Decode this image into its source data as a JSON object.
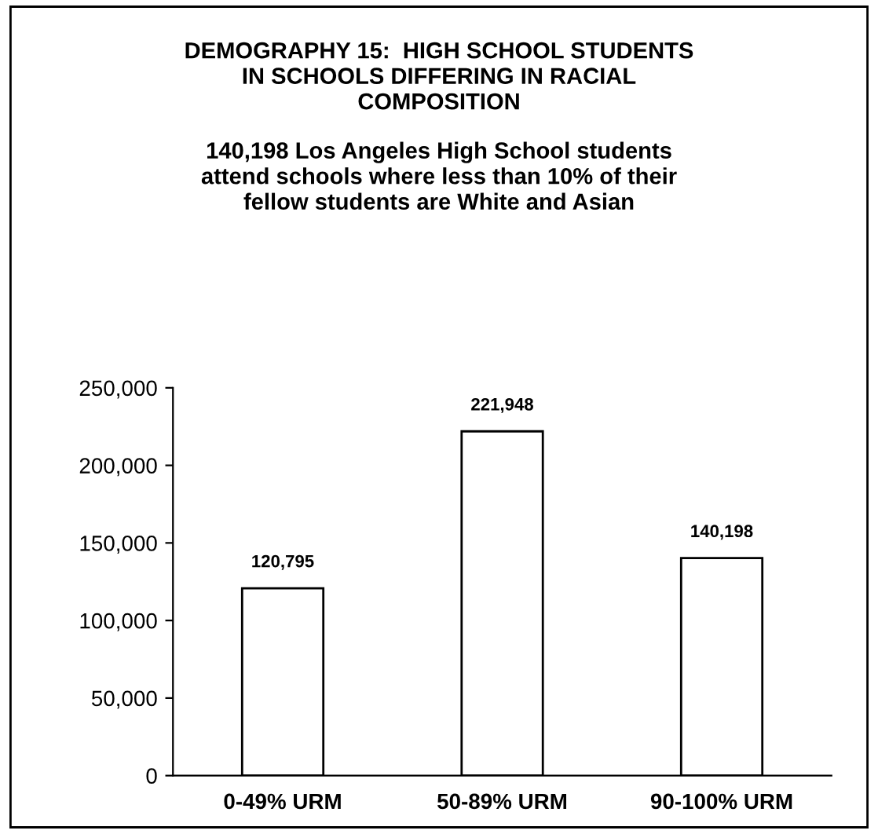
{
  "chart_data": {
    "type": "bar",
    "title": "DEMOGRAPHY 15:  HIGH SCHOOL STUDENTS\nIN SCHOOLS DIFFERING IN RACIAL\nCOMPOSITION",
    "subtitle": "140,198 Los Angeles High School students\nattend schools where less than 10% of their\nfellow students are White and Asian",
    "categories": [
      "0-49% URM",
      "50-89% URM",
      "90-100% URM"
    ],
    "values": [
      120795,
      221948,
      140198
    ],
    "color": "#ffffff",
    "ylim": [
      0,
      250000
    ],
    "yticks": [
      {
        "value": 0,
        "label": "0"
      },
      {
        "value": 50000,
        "label": "50,000"
      },
      {
        "value": 100000,
        "label": "100,000"
      },
      {
        "value": 150000,
        "label": "150,000"
      },
      {
        "value": 200000,
        "label": "200,000"
      },
      {
        "value": 250000,
        "label": "250,000"
      }
    ],
    "value_labels": [
      "120,795",
      "221,948",
      "140,198"
    ],
    "grid": false
  }
}
